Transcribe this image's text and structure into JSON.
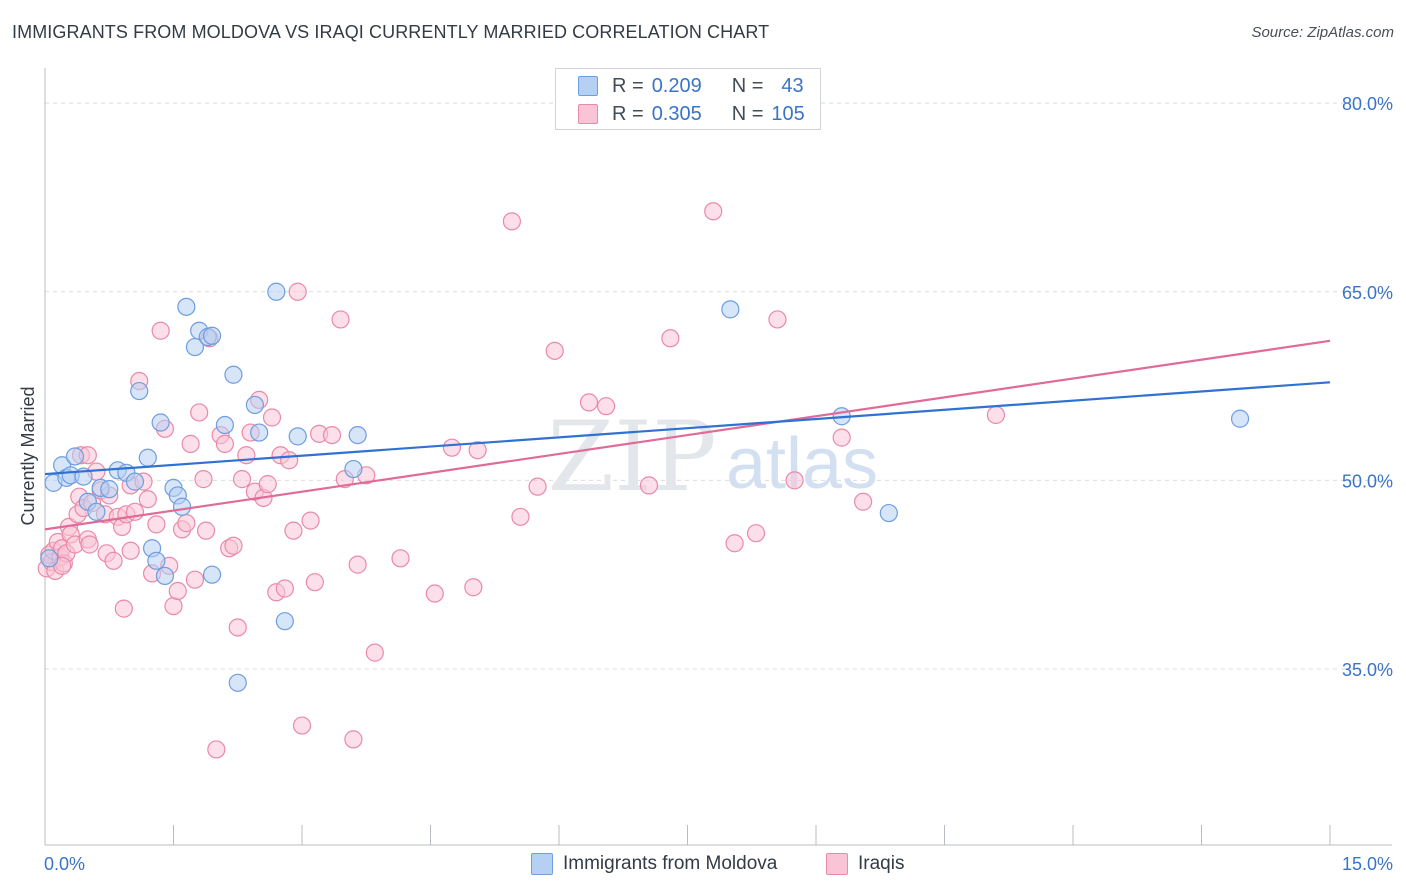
{
  "title": "IMMIGRANTS FROM MOLDOVA VS IRAQI CURRENTLY MARRIED CORRELATION CHART",
  "source": "Source: ZipAtlas.com",
  "legend": {
    "r_label": "R =",
    "n_label": "N =",
    "rows": [
      {
        "r": "0.209",
        "n": "43"
      },
      {
        "r": "0.305",
        "n": "105"
      }
    ]
  },
  "colors": {
    "moldova_fill": "#b6d0f3",
    "moldova_stroke": "#6e9de0",
    "moldova_line": "#2f72d0",
    "iraqi_fill": "#f9c5d6",
    "iraqi_stroke": "#ea89a9",
    "iraqi_line": "#e06b98",
    "tick_label": "#3a74c8"
  },
  "chart_data": {
    "type": "scatter",
    "title": "IMMIGRANTS FROM MOLDOVA VS IRAQI CURRENTLY MARRIED CORRELATION CHART",
    "xlabel": "",
    "ylabel": "Currently Married",
    "xlim": [
      0,
      15
    ],
    "ylim": [
      21,
      82
    ],
    "x_tick_labels": [
      {
        "value": 0,
        "label": "0.0%"
      },
      {
        "value": 15,
        "label": "15.0%"
      }
    ],
    "y_tick_labels": [
      {
        "value": 35,
        "label": "35.0%"
      },
      {
        "value": 50,
        "label": "50.0%"
      },
      {
        "value": 65,
        "label": "65.0%"
      },
      {
        "value": 80,
        "label": "80.0%"
      }
    ],
    "watermark": "ZIPatlas",
    "series": [
      {
        "name": "Immigrants from Moldova",
        "R": 0.209,
        "N": 43,
        "trend": {
          "x": [
            0,
            15
          ],
          "y": [
            50.5,
            57.8
          ]
        },
        "points": [
          [
            0.1,
            49.8
          ],
          [
            0.2,
            51.2
          ],
          [
            0.25,
            50.2
          ],
          [
            0.3,
            50.4
          ],
          [
            0.35,
            51.9
          ],
          [
            0.45,
            50.3
          ],
          [
            0.5,
            48.3
          ],
          [
            0.6,
            47.5
          ],
          [
            0.65,
            49.4
          ],
          [
            0.75,
            49.3
          ],
          [
            0.85,
            50.8
          ],
          [
            0.95,
            50.6
          ],
          [
            1.05,
            49.9
          ],
          [
            1.1,
            57.1
          ],
          [
            1.2,
            51.8
          ],
          [
            1.25,
            44.6
          ],
          [
            1.3,
            43.6
          ],
          [
            1.35,
            54.6
          ],
          [
            1.4,
            42.4
          ],
          [
            1.5,
            49.4
          ],
          [
            1.55,
            48.8
          ],
          [
            1.6,
            47.9
          ],
          [
            1.65,
            63.8
          ],
          [
            1.75,
            60.6
          ],
          [
            1.8,
            61.9
          ],
          [
            1.9,
            61.4
          ],
          [
            1.95,
            42.5
          ],
          [
            2.1,
            54.4
          ],
          [
            2.2,
            58.4
          ],
          [
            2.25,
            33.9
          ],
          [
            2.45,
            56.0
          ],
          [
            2.5,
            53.8
          ],
          [
            2.7,
            65.0
          ],
          [
            2.8,
            38.8
          ],
          [
            2.95,
            53.5
          ],
          [
            3.6,
            50.9
          ],
          [
            3.65,
            53.6
          ],
          [
            8.0,
            63.6
          ],
          [
            9.3,
            55.1
          ],
          [
            9.85,
            47.4
          ],
          [
            13.95,
            54.9
          ],
          [
            0.05,
            43.8
          ],
          [
            1.95,
            61.5
          ]
        ]
      },
      {
        "name": "Iraqis",
        "R": 0.305,
        "N": 105,
        "trend": {
          "x": [
            0,
            15
          ],
          "y": [
            46.1,
            61.1
          ]
        },
        "points": [
          [
            0.02,
            43.0
          ],
          [
            0.05,
            44.1
          ],
          [
            0.08,
            43.5
          ],
          [
            0.1,
            44.4
          ],
          [
            0.12,
            42.8
          ],
          [
            0.15,
            45.1
          ],
          [
            0.18,
            43.9
          ],
          [
            0.2,
            44.6
          ],
          [
            0.22,
            43.4
          ],
          [
            0.25,
            44.2
          ],
          [
            0.28,
            46.3
          ],
          [
            0.3,
            45.7
          ],
          [
            0.35,
            44.9
          ],
          [
            0.38,
            47.3
          ],
          [
            0.4,
            48.7
          ],
          [
            0.42,
            52.0
          ],
          [
            0.45,
            47.8
          ],
          [
            0.5,
            45.3
          ],
          [
            0.52,
            44.9
          ],
          [
            0.55,
            48.2
          ],
          [
            0.6,
            50.7
          ],
          [
            0.65,
            49.2
          ],
          [
            0.7,
            47.3
          ],
          [
            0.72,
            44.2
          ],
          [
            0.75,
            48.8
          ],
          [
            0.8,
            43.6
          ],
          [
            0.85,
            47.1
          ],
          [
            0.9,
            46.3
          ],
          [
            0.92,
            39.8
          ],
          [
            0.95,
            47.3
          ],
          [
            1.0,
            49.6
          ],
          [
            1.05,
            47.5
          ],
          [
            1.1,
            57.9
          ],
          [
            1.15,
            49.9
          ],
          [
            1.2,
            48.5
          ],
          [
            1.25,
            42.6
          ],
          [
            1.3,
            46.5
          ],
          [
            1.35,
            61.9
          ],
          [
            1.4,
            54.1
          ],
          [
            1.45,
            43.2
          ],
          [
            1.5,
            40.0
          ],
          [
            1.55,
            41.2
          ],
          [
            1.6,
            46.1
          ],
          [
            1.65,
            46.6
          ],
          [
            1.7,
            52.9
          ],
          [
            1.75,
            42.1
          ],
          [
            1.8,
            55.4
          ],
          [
            1.85,
            50.1
          ],
          [
            1.88,
            46.0
          ],
          [
            1.92,
            61.3
          ],
          [
            2.0,
            28.6
          ],
          [
            2.05,
            53.6
          ],
          [
            2.1,
            52.9
          ],
          [
            2.15,
            44.6
          ],
          [
            2.2,
            44.8
          ],
          [
            2.25,
            38.3
          ],
          [
            2.3,
            50.1
          ],
          [
            2.35,
            52.0
          ],
          [
            2.4,
            53.8
          ],
          [
            2.45,
            49.1
          ],
          [
            2.5,
            56.4
          ],
          [
            2.55,
            48.6
          ],
          [
            2.6,
            49.7
          ],
          [
            2.65,
            55.0
          ],
          [
            2.7,
            41.1
          ],
          [
            2.75,
            52.0
          ],
          [
            2.8,
            41.4
          ],
          [
            2.85,
            51.6
          ],
          [
            2.9,
            46.0
          ],
          [
            2.95,
            65.0
          ],
          [
            3.0,
            30.5
          ],
          [
            3.1,
            46.8
          ],
          [
            3.15,
            41.9
          ],
          [
            3.2,
            53.7
          ],
          [
            3.35,
            53.6
          ],
          [
            3.45,
            62.8
          ],
          [
            3.5,
            50.1
          ],
          [
            3.6,
            29.4
          ],
          [
            3.65,
            43.3
          ],
          [
            3.75,
            50.4
          ],
          [
            3.85,
            36.3
          ],
          [
            4.15,
            43.8
          ],
          [
            4.55,
            41.0
          ],
          [
            4.75,
            52.6
          ],
          [
            5.0,
            41.5
          ],
          [
            5.05,
            52.4
          ],
          [
            5.45,
            70.6
          ],
          [
            5.55,
            47.1
          ],
          [
            5.75,
            49.5
          ],
          [
            5.95,
            60.3
          ],
          [
            6.35,
            56.2
          ],
          [
            6.55,
            55.9
          ],
          [
            7.05,
            49.6
          ],
          [
            7.3,
            61.3
          ],
          [
            7.8,
            71.4
          ],
          [
            8.05,
            45.0
          ],
          [
            8.3,
            45.8
          ],
          [
            8.55,
            62.8
          ],
          [
            8.75,
            50.0
          ],
          [
            9.3,
            53.4
          ],
          [
            9.55,
            48.3
          ],
          [
            11.1,
            55.2
          ],
          [
            0.5,
            52.0
          ],
          [
            1.0,
            44.4
          ],
          [
            0.2,
            43.2
          ]
        ]
      }
    ]
  },
  "bottom_legend": [
    "Immigrants from Moldova",
    "Iraqis"
  ]
}
